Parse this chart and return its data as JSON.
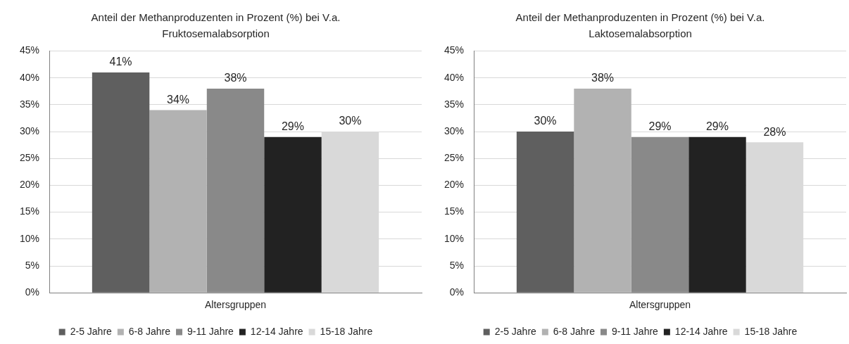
{
  "chart_data": [
    {
      "type": "bar",
      "title": "Anteil der Methanproduzenten in Prozent (%) bei V.a. Fruktosemalabsorption",
      "xlabel": "Altersgruppen",
      "categories": [
        null
      ],
      "series": [
        {
          "name": "2-5 Jahre",
          "color": "#5f5f5f",
          "values": [
            41
          ],
          "value_labels": [
            "41%"
          ]
        },
        {
          "name": "6-8 Jahre",
          "color": "#b2b2b2",
          "values": [
            34
          ],
          "value_labels": [
            "34%"
          ]
        },
        {
          "name": "9-11 Jahre",
          "color": "#898989",
          "values": [
            38
          ],
          "value_labels": [
            "38%"
          ]
        },
        {
          "name": "12-14 Jahre",
          "color": "#222222",
          "values": [
            29
          ],
          "value_labels": [
            "29%"
          ]
        },
        {
          "name": "15-18 Jahre",
          "color": "#d9d9d9",
          "values": [
            30
          ],
          "value_labels": [
            "30%"
          ]
        }
      ],
      "ylim": [
        0,
        45
      ],
      "yticks": [
        {
          "value": 0,
          "label": "0%"
        },
        {
          "value": 5,
          "label": "5%"
        },
        {
          "value": 10,
          "label": "10%"
        },
        {
          "value": 15,
          "label": "15%"
        },
        {
          "value": 20,
          "label": "20%"
        },
        {
          "value": 25,
          "label": "25%"
        },
        {
          "value": 30,
          "label": "30%"
        },
        {
          "value": 35,
          "label": "35%"
        },
        {
          "value": 40,
          "label": "40%"
        },
        {
          "value": 45,
          "label": "45%"
        }
      ],
      "grid": "y",
      "legend": "bottom"
    },
    {
      "type": "bar",
      "title": "Anteil der Methanproduzenten in Prozent (%) bei V.a. Laktosemalabsorption",
      "xlabel": "Altersgruppen",
      "categories": [
        null
      ],
      "series": [
        {
          "name": "2-5 Jahre",
          "color": "#5f5f5f",
          "values": [
            30
          ],
          "value_labels": [
            "30%"
          ]
        },
        {
          "name": "6-8 Jahre",
          "color": "#b2b2b2",
          "values": [
            38
          ],
          "value_labels": [
            "38%"
          ]
        },
        {
          "name": "9-11 Jahre",
          "color": "#898989",
          "values": [
            29
          ],
          "value_labels": [
            "29%"
          ]
        },
        {
          "name": "12-14 Jahre",
          "color": "#222222",
          "values": [
            29
          ],
          "value_labels": [
            "29%"
          ]
        },
        {
          "name": "15-18 Jahre",
          "color": "#d9d9d9",
          "values": [
            28
          ],
          "value_labels": [
            "28%"
          ]
        }
      ],
      "ylim": [
        0,
        45
      ],
      "yticks": [
        {
          "value": 0,
          "label": "0%"
        },
        {
          "value": 5,
          "label": "5%"
        },
        {
          "value": 10,
          "label": "10%"
        },
        {
          "value": 15,
          "label": "15%"
        },
        {
          "value": 20,
          "label": "20%"
        },
        {
          "value": 25,
          "label": "25%"
        },
        {
          "value": 30,
          "label": "30%"
        },
        {
          "value": 35,
          "label": "35%"
        },
        {
          "value": 40,
          "label": "40%"
        },
        {
          "value": 45,
          "label": "45%"
        }
      ],
      "grid": "y",
      "legend": "bottom"
    }
  ]
}
